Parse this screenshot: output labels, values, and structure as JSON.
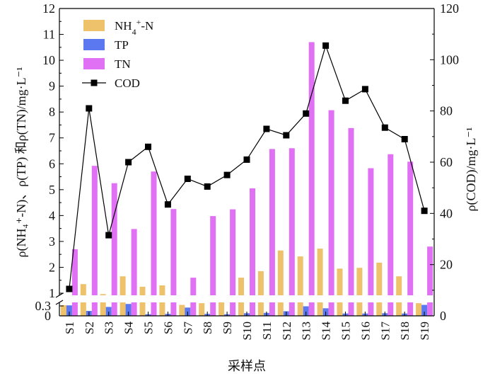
{
  "chart_data": {
    "type": "bar",
    "categories": [
      "S1",
      "S2",
      "S3",
      "S4",
      "S5",
      "S6",
      "S7",
      "S8",
      "S9",
      "S10",
      "S11",
      "S12",
      "S13",
      "S14",
      "S15",
      "S16",
      "S17",
      "S18",
      "S19"
    ],
    "xlabel": "采样点",
    "ylabel_left": "ρ(NH₄⁺-N)、ρ(TP) 和ρ(TN)/mg·L⁻¹",
    "ylabel_right": "ρ(COD)/mg·L⁻¹",
    "left_axis": {
      "broken": true,
      "lower_ticks": [
        0,
        0.3
      ],
      "upper_ticks": [
        1,
        2,
        3,
        4,
        5,
        6,
        7,
        8,
        9,
        10,
        11,
        12
      ],
      "upper_range": [
        1,
        12
      ]
    },
    "right_axis": {
      "ylim": [
        0,
        120
      ],
      "ticks": [
        0,
        20,
        40,
        60,
        80,
        100,
        120
      ]
    },
    "series": [
      {
        "name": "NH4+-N",
        "axis": "left",
        "kind": "bar",
        "color": "#EDC26A",
        "values": [
          0.34,
          1.35,
          0.95,
          1.65,
          1.25,
          1.3,
          0.36,
          0.45,
          0.5,
          1.6,
          1.85,
          2.65,
          2.42,
          2.72,
          1.95,
          1.98,
          2.18,
          1.65,
          0.45
        ]
      },
      {
        "name": "TP",
        "axis": "left",
        "kind": "bar",
        "color": "#5B78F0",
        "values": [
          0.33,
          0.15,
          0.27,
          0.41,
          0.05,
          0.06,
          0.25,
          0.06,
          0.05,
          0.08,
          0.09,
          0.14,
          0.29,
          0.23,
          0.07,
          0.07,
          0.08,
          0.07,
          0.36
        ]
      },
      {
        "name": "TN",
        "axis": "left",
        "kind": "bar",
        "color": "#E070F4",
        "values": [
          2.7,
          5.92,
          5.25,
          3.48,
          5.7,
          4.25,
          1.6,
          3.98,
          4.24,
          5.05,
          6.57,
          6.6,
          10.7,
          8.07,
          7.38,
          5.83,
          6.37,
          6.08,
          2.8
        ]
      },
      {
        "name": "COD",
        "axis": "right",
        "kind": "line",
        "color": "#000000",
        "values": [
          10.5,
          81,
          31.5,
          60,
          66,
          43.5,
          53.5,
          50.5,
          55,
          61,
          73,
          70.5,
          79,
          105.5,
          84,
          88.5,
          73.5,
          69,
          41
        ]
      }
    ],
    "legend": {
      "position": "top-left",
      "entries": [
        {
          "label_main": "NH",
          "label_sub": "4",
          "label_sup": "+",
          "label_tail": "-N",
          "marker": "bar",
          "color": "#EDC26A"
        },
        {
          "label": "TP",
          "marker": "bar",
          "color": "#5B78F0"
        },
        {
          "label": "TN",
          "marker": "bar",
          "color": "#E070F4"
        },
        {
          "label": "COD",
          "marker": "line-square",
          "color": "#000000"
        }
      ]
    }
  }
}
